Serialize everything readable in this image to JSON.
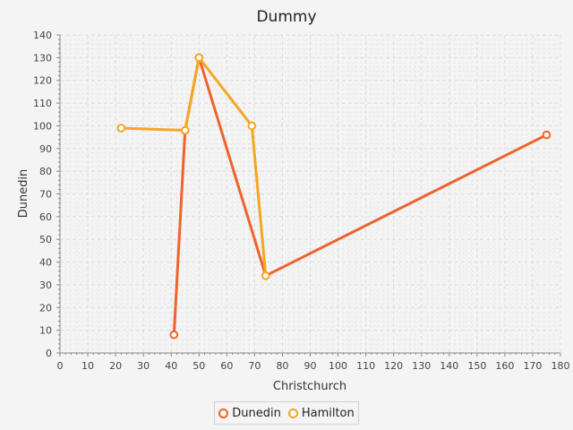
{
  "chart_data": {
    "type": "line",
    "title": "Dummy",
    "xlabel": "Christchurch",
    "ylabel": "Dunedin",
    "xlim": [
      0,
      180
    ],
    "ylim": [
      0,
      140
    ],
    "x_ticks": [
      0,
      10,
      20,
      30,
      40,
      50,
      60,
      70,
      80,
      90,
      100,
      110,
      120,
      130,
      140,
      150,
      160,
      170,
      180
    ],
    "y_ticks": [
      0,
      10,
      20,
      30,
      40,
      50,
      60,
      70,
      80,
      90,
      100,
      110,
      120,
      130,
      140
    ],
    "grid": true,
    "legend_position": "bottom",
    "series": [
      {
        "name": "Dunedin",
        "color": "#f0622c",
        "points": [
          [
            41,
            8
          ],
          [
            45,
            98
          ],
          [
            50,
            130
          ],
          [
            74,
            34
          ],
          [
            175,
            96
          ]
        ]
      },
      {
        "name": "Hamilton",
        "color": "#f5a623",
        "points": [
          [
            22,
            99
          ],
          [
            45,
            98
          ],
          [
            50,
            130
          ],
          [
            69,
            100
          ],
          [
            74,
            34
          ]
        ]
      }
    ]
  }
}
